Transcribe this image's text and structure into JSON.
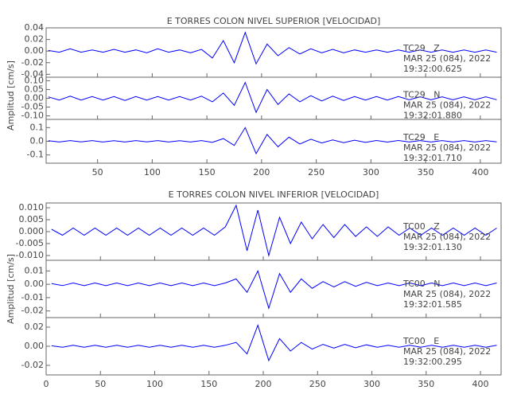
{
  "chart_data": [
    {
      "type": "line",
      "title": "E TORRES COLON NIVEL SUPERIOR [VELOCIDAD]",
      "ylabel": "Amplitud [cm/s]",
      "color": "#0000ff",
      "xlim": [
        3,
        419
      ],
      "xticks": [
        50,
        100,
        150,
        200,
        250,
        300,
        350,
        400
      ],
      "x": [
        5,
        15,
        25,
        35,
        45,
        55,
        65,
        75,
        85,
        95,
        105,
        115,
        125,
        135,
        145,
        155,
        165,
        175,
        185,
        195,
        205,
        215,
        225,
        235,
        245,
        255,
        265,
        275,
        285,
        295,
        305,
        315,
        325,
        335,
        345,
        355,
        365,
        375,
        385,
        395,
        405,
        415
      ],
      "panels": [
        {
          "label": "TC29   Z",
          "date": "MAR 25 (084), 2022",
          "time": "19:32:00.625",
          "ylim": [
            -0.045,
            0.04
          ],
          "yticks": [
            {
              "value": 0.04,
              "label": "0.04"
            },
            {
              "value": 0.02,
              "label": "0.02"
            },
            {
              "value": 0,
              "label": "0.00"
            },
            {
              "value": -0.02,
              "label": "-0.02"
            },
            {
              "value": -0.04,
              "label": "-0.04"
            }
          ],
          "values": [
            0.001,
            -0.002,
            0.004,
            -0.002,
            0.002,
            -0.002,
            0.003,
            -0.002,
            0.002,
            -0.003,
            0.004,
            -0.002,
            0.002,
            -0.003,
            0.003,
            -0.012,
            0.018,
            -0.02,
            0.032,
            -0.022,
            0.012,
            -0.008,
            0.006,
            -0.005,
            0.004,
            -0.003,
            0.003,
            -0.003,
            0.002,
            -0.002,
            0.002,
            -0.002,
            0.002,
            -0.002,
            0.002,
            -0.002,
            0.002,
            -0.002,
            0.002,
            -0.002,
            0.002,
            -0.002
          ]
        },
        {
          "label": "TC29   N",
          "date": "MAR 25 (084), 2022",
          "time": "19:32:01.880",
          "ylim": [
            -0.12,
            0.12
          ],
          "yticks": [
            {
              "value": 0.1,
              "label": "0.10"
            },
            {
              "value": 0.05,
              "label": "0.05"
            },
            {
              "value": 0,
              "label": "0.00"
            },
            {
              "value": -0.05,
              "label": "-0.05"
            },
            {
              "value": -0.1,
              "label": "-0.10"
            }
          ],
          "values": [
            0.008,
            -0.01,
            0.012,
            -0.01,
            0.01,
            -0.01,
            0.01,
            -0.012,
            0.01,
            -0.01,
            0.01,
            -0.01,
            0.01,
            -0.01,
            0.012,
            -0.02,
            0.03,
            -0.04,
            0.09,
            -0.08,
            0.05,
            -0.035,
            0.025,
            -0.02,
            0.015,
            -0.015,
            0.012,
            -0.012,
            0.01,
            -0.01,
            0.01,
            -0.01,
            0.01,
            -0.008,
            0.008,
            -0.008,
            0.008,
            -0.008,
            0.008,
            -0.008,
            0.008,
            -0.008
          ]
        },
        {
          "label": "TC29   E",
          "date": "MAR 25 (084), 2022",
          "time": "19:32:01.710",
          "ylim": [
            -0.16,
            0.16
          ],
          "yticks": [
            0.1,
            {
              "value": 0,
              "label": "0.0"
            },
            -0.1
          ],
          "values": [
            0.004,
            -0.005,
            0.005,
            -0.004,
            0.005,
            -0.005,
            0.004,
            -0.005,
            0.005,
            -0.004,
            0.005,
            -0.005,
            0.004,
            -0.005,
            0.005,
            -0.008,
            0.02,
            -0.03,
            0.1,
            -0.09,
            0.05,
            -0.04,
            0.03,
            -0.02,
            0.015,
            -0.012,
            0.01,
            -0.01,
            0.008,
            -0.008,
            0.006,
            -0.006,
            0.006,
            -0.005,
            0.005,
            -0.005,
            0.005,
            -0.005,
            0.005,
            -0.005,
            0.005,
            -0.004
          ]
        }
      ]
    },
    {
      "type": "line",
      "title": "E TORRES COLON NIVEL INFERIOR [VELOCIDAD]",
      "ylabel": "Amplitud [cm/s]",
      "color": "#0000ff",
      "xlim": [
        0,
        419
      ],
      "xticks": [
        0,
        50,
        100,
        150,
        200,
        250,
        300,
        350,
        400
      ],
      "x": [
        5,
        15,
        25,
        35,
        45,
        55,
        65,
        75,
        85,
        95,
        105,
        115,
        125,
        135,
        145,
        155,
        165,
        175,
        185,
        195,
        205,
        215,
        225,
        235,
        245,
        255,
        265,
        275,
        285,
        295,
        305,
        315,
        325,
        335,
        345,
        355,
        365,
        375,
        385,
        395,
        405,
        415
      ],
      "panels": [
        {
          "label": "TC00   Z",
          "date": "MAR 25 (084), 2022",
          "time": "19:32:01.130",
          "ylim": [
            -0.012,
            0.012
          ],
          "yticks": [
            {
              "value": 0.01,
              "label": "0.010"
            },
            {
              "value": 0.005,
              "label": "0.005"
            },
            {
              "value": 0,
              "label": "0.000"
            },
            {
              "value": -0.005,
              "label": "-0.005"
            },
            {
              "value": -0.01,
              "label": "-0.010"
            }
          ],
          "values": [
            0.001,
            -0.0015,
            0.0015,
            -0.0015,
            0.0015,
            -0.0015,
            0.0015,
            -0.0015,
            0.0015,
            -0.0015,
            0.0015,
            -0.0015,
            0.0015,
            -0.0015,
            0.0015,
            -0.0015,
            0.002,
            0.011,
            -0.008,
            0.009,
            -0.01,
            0.006,
            -0.005,
            0.004,
            -0.003,
            0.003,
            -0.0025,
            0.003,
            -0.002,
            0.002,
            -0.002,
            0.002,
            -0.0015,
            0.0015,
            -0.0015,
            0.0015,
            -0.0015,
            0.0015,
            -0.0015,
            0.0015,
            -0.0015,
            0.0015
          ]
        },
        {
          "label": "TC00   N",
          "date": "MAR 25 (084), 2022",
          "time": "19:32:01.585",
          "ylim": [
            -0.025,
            0.018
          ],
          "yticks": [
            0.01,
            {
              "value": 0,
              "label": "0.00"
            },
            -0.01,
            -0.02
          ],
          "values": [
            0.0005,
            -0.001,
            0.001,
            -0.001,
            0.001,
            -0.001,
            0.001,
            -0.001,
            0.001,
            -0.001,
            0.001,
            -0.001,
            0.001,
            -0.001,
            0.001,
            -0.001,
            0.001,
            0.004,
            -0.006,
            0.01,
            -0.018,
            0.008,
            -0.006,
            0.004,
            -0.003,
            0.002,
            -0.002,
            0.002,
            -0.0015,
            0.0015,
            -0.001,
            0.001,
            -0.001,
            0.001,
            -0.001,
            0.001,
            -0.001,
            0.001,
            -0.001,
            0.001,
            -0.001,
            0.001
          ]
        },
        {
          "label": "TC00   E",
          "date": "MAR 25 (084), 2022",
          "time": "19:32:00.295",
          "ylim": [
            -0.03,
            0.03
          ],
          "yticks": [
            0.02,
            {
              "value": 0,
              "label": "0.00"
            },
            -0.02
          ],
          "values": [
            0.0005,
            -0.001,
            0.001,
            -0.001,
            0.001,
            -0.001,
            0.001,
            -0.001,
            0.001,
            -0.001,
            0.001,
            -0.001,
            0.001,
            -0.001,
            0.001,
            -0.001,
            0.001,
            0.004,
            -0.008,
            0.022,
            -0.015,
            0.008,
            -0.005,
            0.004,
            -0.003,
            0.002,
            -0.002,
            0.002,
            -0.0015,
            0.0015,
            -0.001,
            0.001,
            -0.001,
            0.001,
            -0.001,
            0.001,
            -0.001,
            0.001,
            -0.001,
            0.001,
            -0.001,
            0.001
          ]
        }
      ]
    }
  ]
}
